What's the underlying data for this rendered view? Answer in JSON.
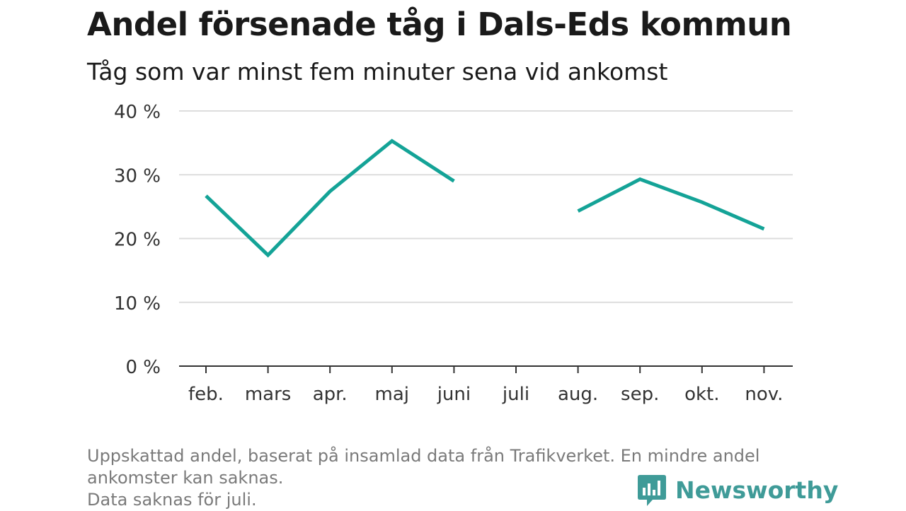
{
  "chart_data": {
    "type": "line",
    "title": "Andel försenade tåg i Dals-Eds kommun",
    "subtitle": "Tåg som var minst fem minuter sena vid ankomst",
    "categories": [
      "feb.",
      "mars",
      "apr.",
      "maj",
      "juni",
      "juli",
      "aug.",
      "sep.",
      "okt.",
      "nov."
    ],
    "series": [
      {
        "values": [
          26.7,
          17.4,
          27.4,
          35.3,
          29.0,
          null,
          24.3,
          29.3,
          25.7,
          21.5
        ]
      }
    ],
    "ylim": [
      0,
      40
    ],
    "yticks": [
      0,
      10,
      20,
      30,
      40
    ],
    "ytick_labels": [
      "0 %",
      "10 %",
      "20 %",
      "30 %",
      "40 %"
    ],
    "xlabel": "",
    "ylabel": "",
    "grid": true,
    "line_color": "#14a397"
  },
  "footnote": [
    "Uppskattad andel, baserat på insamlad data från Trafikverket. En mindre andel",
    "ankomster kan saknas.",
    "Data saknas för juli."
  ],
  "logo": {
    "text": "Newsworthy",
    "icon": "newsworthy-logo-icon",
    "color": "#3f9b98"
  }
}
